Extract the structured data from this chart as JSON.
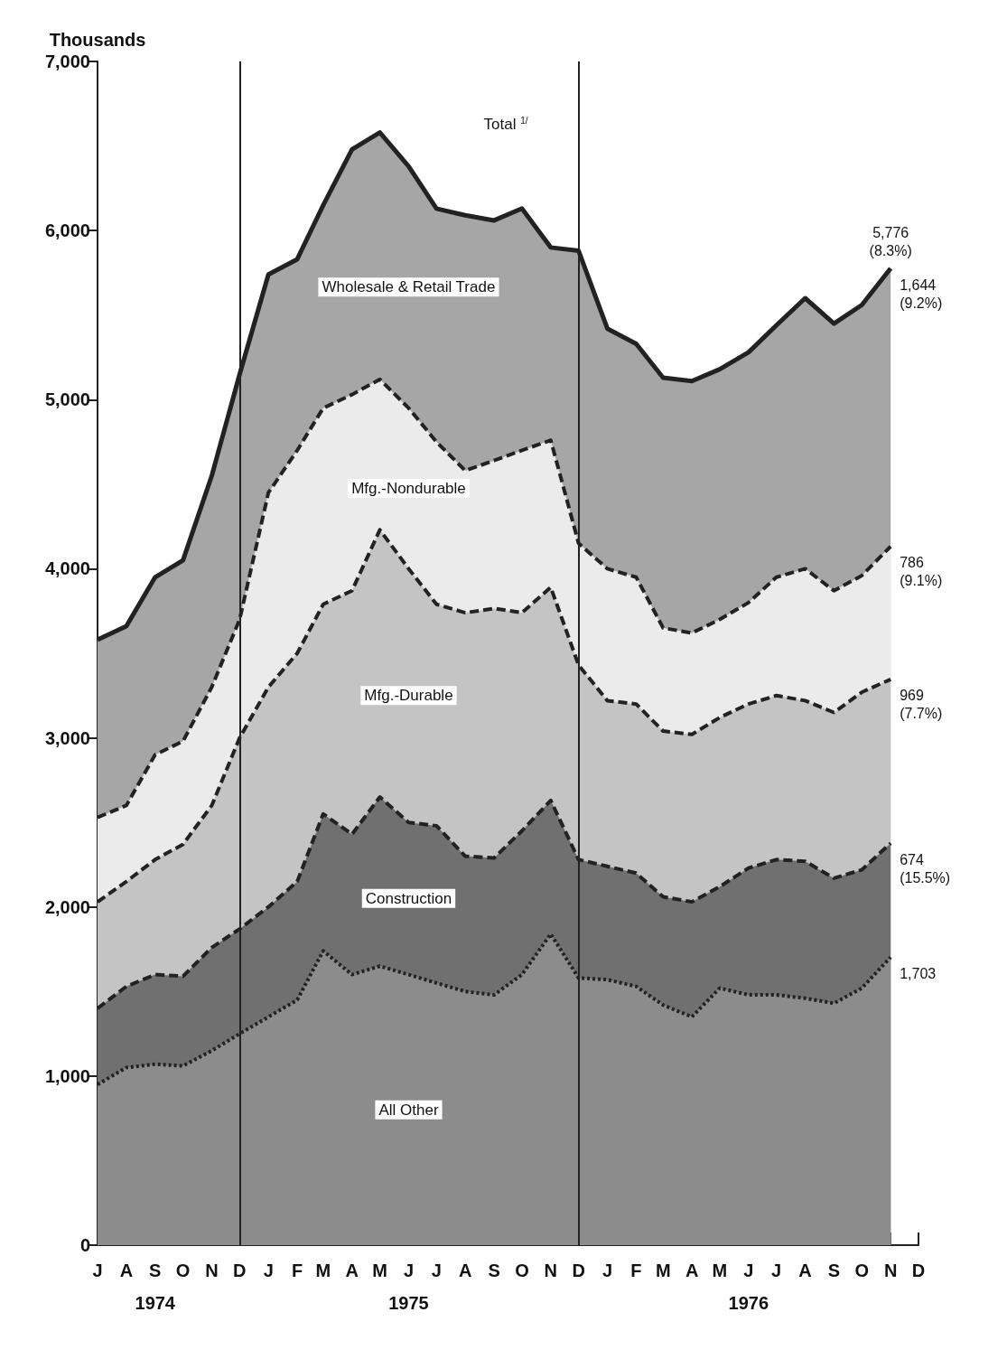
{
  "chart_data": {
    "type": "area",
    "stacked": true,
    "ylabel": "Thousands",
    "grid": false,
    "legend": false,
    "marker": "none",
    "x": [
      "1974-07",
      "1974-08",
      "1974-09",
      "1974-10",
      "1974-11",
      "1974-12",
      "1975-01",
      "1975-02",
      "1975-03",
      "1975-04",
      "1975-05",
      "1975-06",
      "1975-07",
      "1975-08",
      "1975-09",
      "1975-10",
      "1975-11",
      "1975-12",
      "1976-01",
      "1976-02",
      "1976-03",
      "1976-04",
      "1976-05",
      "1976-06",
      "1976-07",
      "1976-08",
      "1976-09",
      "1976-10",
      "1976-11"
    ],
    "xlim": [
      "1974-07",
      "1976-12"
    ],
    "xticks": [
      {
        "value": "1974-07",
        "label": "J"
      },
      {
        "value": "1974-08",
        "label": "A"
      },
      {
        "value": "1974-09",
        "label": "S\n1974"
      },
      {
        "value": "1974-10",
        "label": "O"
      },
      {
        "value": "1974-11",
        "label": "N"
      },
      {
        "value": "1974-12",
        "label": "D"
      },
      {
        "value": "1975-01",
        "label": "J"
      },
      {
        "value": "1975-02",
        "label": "F"
      },
      {
        "value": "1975-03",
        "label": "M"
      },
      {
        "value": "1975-04",
        "label": "A"
      },
      {
        "value": "1975-05",
        "label": "M"
      },
      {
        "value": "1975-06",
        "label": "J\n1975"
      },
      {
        "value": "1975-07",
        "label": "J"
      },
      {
        "value": "1975-08",
        "label": "A"
      },
      {
        "value": "1975-09",
        "label": "S"
      },
      {
        "value": "1975-10",
        "label": "O"
      },
      {
        "value": "1975-11",
        "label": "N"
      },
      {
        "value": "1975-12",
        "label": "D"
      },
      {
        "value": "1976-01",
        "label": "J"
      },
      {
        "value": "1976-02",
        "label": "F"
      },
      {
        "value": "1976-03",
        "label": "M"
      },
      {
        "value": "1976-04",
        "label": "A"
      },
      {
        "value": "1976-05",
        "label": "M"
      },
      {
        "value": "1976-06",
        "label": "J\n1976"
      },
      {
        "value": "1976-07",
        "label": "J"
      },
      {
        "value": "1976-08",
        "label": "A"
      },
      {
        "value": "1976-09",
        "label": "S"
      },
      {
        "value": "1976-10",
        "label": "O"
      },
      {
        "value": "1976-11",
        "label": "N"
      },
      {
        "value": "1976-12",
        "label": "D"
      }
    ],
    "ylim": [
      0,
      7000
    ],
    "yticks": [
      0,
      {
        "value": 1000,
        "label": "1,000"
      },
      {
        "value": 2000,
        "label": "2,000"
      },
      {
        "value": 3000,
        "label": "3,000"
      },
      {
        "value": 4000,
        "label": "4,000"
      },
      {
        "value": 5000,
        "label": "5,000"
      },
      {
        "value": 6000,
        "label": "6,000"
      },
      {
        "value": 7000,
        "label": "7,000"
      }
    ],
    "ref_lines": [
      {
        "axis": "x",
        "value": "1974-12"
      },
      {
        "axis": "x",
        "value": "1975-12"
      }
    ],
    "series": [
      {
        "name": "All Other",
        "color": "#8c8c8c",
        "line_style": "dotted",
        "values": [
          950,
          1050,
          1070,
          1060,
          1150,
          1250,
          1350,
          1450,
          1740,
          1600,
          1650,
          1600,
          1550,
          1500,
          1480,
          1600,
          1840,
          1580,
          1570,
          1530,
          1420,
          1350,
          1520,
          1480,
          1480,
          1460,
          1430,
          1520,
          1703
        ],
        "value_labels": [
          null,
          null,
          null,
          null,
          null,
          null,
          null,
          null,
          null,
          null,
          null,
          null,
          null,
          null,
          null,
          null,
          null,
          null,
          null,
          null,
          null,
          null,
          null,
          null,
          null,
          null,
          null,
          null,
          "1,703"
        ]
      },
      {
        "name": "Construction",
        "color": "#707070",
        "line_style": "dashed",
        "values": [
          450,
          480,
          530,
          530,
          610,
          620,
          650,
          700,
          810,
          830,
          1000,
          900,
          930,
          800,
          810,
          850,
          790,
          700,
          670,
          670,
          640,
          680,
          600,
          750,
          800,
          810,
          740,
          700,
          674
        ],
        "value_labels": [
          null,
          null,
          null,
          null,
          null,
          null,
          null,
          null,
          null,
          null,
          null,
          null,
          null,
          null,
          null,
          null,
          null,
          null,
          null,
          null,
          null,
          null,
          null,
          null,
          null,
          null,
          null,
          null,
          "674\n(15.5%)"
        ]
      },
      {
        "name": "Mfg.-Durable",
        "color": "#c4c4c4",
        "line_style": "dashed",
        "values": [
          630,
          620,
          680,
          780,
          840,
          1130,
          1300,
          1350,
          1240,
          1440,
          1580,
          1500,
          1310,
          1440,
          1475,
          1290,
          1260,
          1150,
          980,
          1000,
          980,
          990,
          1000,
          970,
          970,
          950,
          980,
          1050,
          969
        ],
        "value_labels": [
          null,
          null,
          null,
          null,
          null,
          null,
          null,
          null,
          null,
          null,
          null,
          null,
          null,
          null,
          null,
          null,
          null,
          null,
          null,
          null,
          null,
          null,
          null,
          null,
          null,
          null,
          null,
          null,
          "969\n(7.7%)"
        ]
      },
      {
        "name": "Mfg.-Nondurable",
        "color": "#ebebeb",
        "line_style": "dashed",
        "values": [
          500,
          450,
          620,
          610,
          700,
          700,
          1150,
          1200,
          1160,
          1160,
          890,
          950,
          960,
          840,
          875,
          960,
          870,
          720,
          780,
          750,
          610,
          600,
          580,
          600,
          700,
          780,
          720,
          690,
          786
        ],
        "value_labels": [
          null,
          null,
          null,
          null,
          null,
          null,
          null,
          null,
          null,
          null,
          null,
          null,
          null,
          null,
          null,
          null,
          null,
          null,
          null,
          null,
          null,
          null,
          null,
          null,
          null,
          null,
          null,
          null,
          "786\n(9.1%)"
        ]
      },
      {
        "name": "Wholesale & Retail Trade",
        "color": "#a6a6a6",
        "line_style": "solid",
        "values": [
          1050,
          1060,
          1050,
          1070,
          1250,
          1450,
          1290,
          1130,
          1200,
          1450,
          1460,
          1430,
          1380,
          1510,
          1420,
          1430,
          1140,
          1730,
          1420,
          1380,
          1480,
          1490,
          1480,
          1480,
          1490,
          1600,
          1580,
          1600,
          1644
        ],
        "value_labels": [
          null,
          null,
          null,
          null,
          null,
          null,
          null,
          null,
          null,
          null,
          null,
          null,
          null,
          null,
          null,
          null,
          null,
          null,
          null,
          null,
          null,
          null,
          null,
          null,
          null,
          null,
          null,
          null,
          "1,644\n(9.2%)"
        ]
      }
    ],
    "annotations": [
      "Total $^{1/}$",
      {
        "text": "5,776\n(8.3%)",
        "x": "1976-11",
        "y": 5776
      }
    ]
  }
}
